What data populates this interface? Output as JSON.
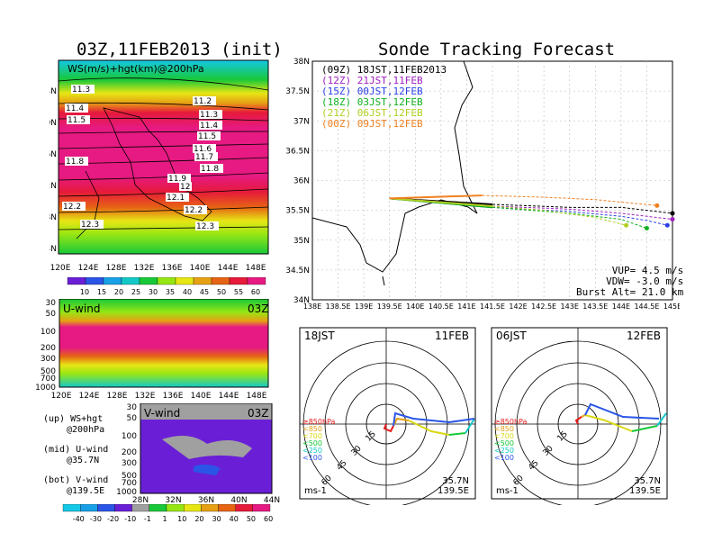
{
  "titles": {
    "left": "03Z,11FEB2013 (init)",
    "right": "Sonde Tracking Forecast"
  },
  "ws_panel": {
    "label": "WS(m/s)+hgt(km)@200hPa",
    "lat_labels": [
      "44N",
      "40N",
      "36N",
      "32N",
      "28N",
      "24N"
    ],
    "lon_labels": [
      "120E",
      "124E",
      "128E",
      "132E",
      "136E",
      "140E",
      "144E",
      "148E"
    ],
    "contours": [
      "11.3",
      "11.2",
      "11.4",
      "11.3",
      "11.5",
      "11.4",
      "11.5",
      "11.6",
      "11.8",
      "11.7",
      "11.8",
      "11.9",
      "12",
      "12.1",
      "12.2",
      "12.2",
      "12.3",
      "12.3"
    ],
    "colorbar": [
      "10",
      "15",
      "20",
      "25",
      "30",
      "35",
      "40",
      "45",
      "50",
      "55",
      "60"
    ],
    "colors": [
      "#6a1fd6",
      "#2a55e6",
      "#1aa0e6",
      "#14c8c8",
      "#18c838",
      "#96e614",
      "#e6e614",
      "#e6a014",
      "#e66414",
      "#e61a3a",
      "#e61a82"
    ]
  },
  "u_panel": {
    "label": "U-wind",
    "time": "03Z",
    "levels": [
      "30",
      "50",
      "100",
      "200",
      "300",
      "500",
      "700",
      "1000"
    ],
    "lon_labels": [
      "120E",
      "124E",
      "128E",
      "132E",
      "136E",
      "140E",
      "144E",
      "148E"
    ]
  },
  "v_panel": {
    "label": "V-wind",
    "time": "03Z",
    "levels": [
      "30",
      "50",
      "100",
      "200",
      "300",
      "500",
      "700",
      "1000"
    ],
    "lat_labels": [
      "28N",
      "32N",
      "36N",
      "40N",
      "44N"
    ],
    "colorbar": [
      "-40",
      "-30",
      "-20",
      "-10",
      "-1",
      "1",
      "10",
      "20",
      "30",
      "40",
      "50",
      "60"
    ],
    "colors": [
      "#14c8e6",
      "#18a0e6",
      "#2a55e6",
      "#6a1fd6",
      "#a0a0a0",
      "#18c838",
      "#96e614",
      "#e6e614",
      "#e6a014",
      "#e66414",
      "#e61a3a",
      "#e61a82"
    ]
  },
  "notes": [
    {
      "line1": "(up) WS+hgt",
      "line2": "@200hPa"
    },
    {
      "line1": "(mid) U-wind",
      "line2": "@35.7N"
    },
    {
      "line1": "(bot) V-wind",
      "line2": "@139.5E"
    }
  ],
  "track_panel": {
    "lat_labels": [
      "38N",
      "37.5N",
      "37N",
      "36.5N",
      "36N",
      "35.5N",
      "35N",
      "34.5N",
      "34N"
    ],
    "lon_labels": [
      "138E",
      "138.5E",
      "139E",
      "139.5E",
      "140E",
      "140.5E",
      "141E",
      "141.5E",
      "142E",
      "142.5E",
      "143E",
      "143.5E",
      "144E",
      "144.5E",
      "145E"
    ],
    "legend": [
      {
        "code": "(09Z)",
        "time": "18JST,11FEB2013",
        "color": "#000000"
      },
      {
        "code": "(12Z)",
        "time": "21JST,11FEB",
        "color": "#a020c0"
      },
      {
        "code": "(15Z)",
        "time": "00JST,12FEB",
        "color": "#2a40e6"
      },
      {
        "code": "(18Z)",
        "time": "03JST,12FEB",
        "color": "#10b020"
      },
      {
        "code": "(21Z)",
        "time": "06JST,12FEB",
        "color": "#b0d020"
      },
      {
        "code": "(00Z)",
        "time": "09JST,12FEB",
        "color": "#f08020"
      }
    ],
    "params": [
      "VUP= 4.5 m/s",
      "VDW= -3.0 m/s",
      "Burst Alt= 21.0 km"
    ]
  },
  "hodographs": [
    {
      "time": "18JST",
      "date": "11FEB",
      "lat": "35.7N",
      "lon": "139.5E"
    },
    {
      "time": "06JST",
      "date": "12FEB",
      "lat": "35.7N",
      "lon": "139.5E"
    }
  ],
  "hodo_rings": [
    "15",
    "30",
    "45",
    "60"
  ],
  "hodo_unit": "ms-1",
  "hodo_legend": [
    {
      "text": "≥850hPa",
      "color": "#e61a1a"
    },
    {
      "text": "<850",
      "color": "#e6a014"
    },
    {
      "text": "<700",
      "color": "#d8d814"
    },
    {
      "text": "<500",
      "color": "#18c838"
    },
    {
      "text": "<250",
      "color": "#14c8c8"
    },
    {
      "text": "<100",
      "color": "#2a55e6"
    }
  ],
  "chart_data": [
    {
      "type": "heatmap",
      "title": "WS(m/s)+hgt(km)@200hPa",
      "x": [
        "120E",
        "124E",
        "128E",
        "132E",
        "136E",
        "140E",
        "144E",
        "148E"
      ],
      "y": [
        "24N",
        "28N",
        "32N",
        "36N",
        "40N",
        "44N"
      ],
      "rows_ws_by_lat": [
        {
          "lat": "24N",
          "ws": 30
        },
        {
          "lat": "28N",
          "ws": 45
        },
        {
          "lat": "32N",
          "ws": 60
        },
        {
          "lat": "36N",
          "ws": 60
        },
        {
          "lat": "40N",
          "ws": 50
        },
        {
          "lat": "44N",
          "ws": 30
        }
      ]
    },
    {
      "type": "line",
      "title": "Sonde Tracking Forecast",
      "series": [
        {
          "name": "18JST,11FEB2013",
          "x": [
            139.5,
            141.5,
            143,
            144,
            144.5,
            145
          ],
          "y": [
            35.7,
            35.6,
            35.55,
            35.55,
            35.5,
            35.45
          ]
        },
        {
          "name": "21JST,11FEB",
          "x": [
            139.5,
            141.5,
            143,
            144,
            144.5,
            145
          ],
          "y": [
            35.7,
            35.57,
            35.52,
            35.45,
            35.4,
            35.35
          ]
        },
        {
          "name": "00JST,12FEB",
          "x": [
            139.5,
            141.5,
            143,
            144,
            144.5,
            144.9
          ],
          "y": [
            35.7,
            35.55,
            35.48,
            35.4,
            35.33,
            35.25
          ]
        },
        {
          "name": "03JST,12FEB",
          "x": [
            139.5,
            141.5,
            143,
            144,
            144.5
          ],
          "y": [
            35.7,
            35.55,
            35.45,
            35.35,
            35.2
          ]
        },
        {
          "name": "06JST,12FEB",
          "x": [
            139.5,
            141.5,
            142.5,
            143.5,
            144.1
          ],
          "y": [
            35.7,
            35.57,
            35.5,
            35.38,
            35.25
          ]
        },
        {
          "name": "09JST,12FEB",
          "x": [
            139.5,
            141.3,
            142.5,
            143.5,
            144.7
          ],
          "y": [
            35.7,
            35.75,
            35.72,
            35.68,
            35.58
          ]
        }
      ]
    }
  ]
}
